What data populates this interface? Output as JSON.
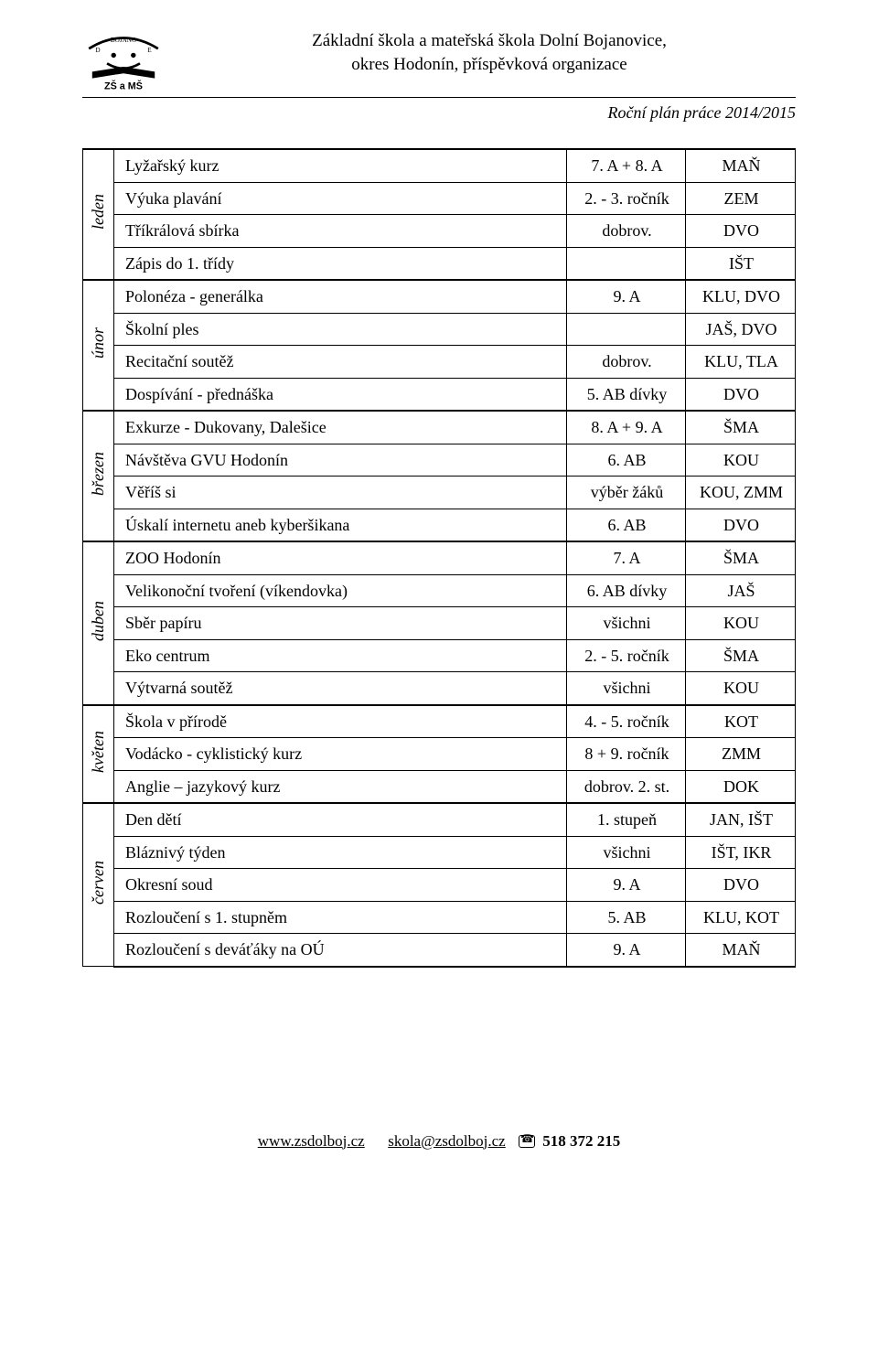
{
  "header": {
    "line1": "Základní škola a mateřská škola Dolní Bojanovice,",
    "line2": "okres Hodonín, příspěvková organizace"
  },
  "subtitle": "Roční plán práce 2014/2015",
  "months": [
    {
      "name": "leden",
      "rows": [
        {
          "activity": "Lyžařský kurz",
          "detail": "7. A + 8. A",
          "code": "MAŇ"
        },
        {
          "activity": "Výuka plavání",
          "detail": "2. - 3. ročník",
          "code": "ZEM"
        },
        {
          "activity": "Tříkrálová sbírka",
          "detail": "dobrov.",
          "code": "DVO"
        },
        {
          "activity": "Zápis do 1. třídy",
          "detail": "",
          "code": "IŠT"
        }
      ]
    },
    {
      "name": "únor",
      "rows": [
        {
          "activity": "Polonéza - generálka",
          "detail": "9. A",
          "code": "KLU, DVO"
        },
        {
          "activity": "Školní ples",
          "detail": "",
          "code": "JAŠ, DVO"
        },
        {
          "activity": "Recitační soutěž",
          "detail": "dobrov.",
          "code": "KLU, TLA"
        },
        {
          "activity": "Dospívání - přednáška",
          "detail": "5. AB dívky",
          "code": "DVO"
        }
      ]
    },
    {
      "name": "březen",
      "rows": [
        {
          "activity": "Exkurze - Dukovany, Dalešice",
          "detail": "8. A + 9. A",
          "code": "ŠMA"
        },
        {
          "activity": "Návštěva GVU Hodonín",
          "detail": "6. AB",
          "code": "KOU"
        },
        {
          "activity": "Věříš si",
          "detail": "výběr žáků",
          "code": "KOU, ZMM"
        },
        {
          "activity": "Úskalí internetu aneb kyberšikana",
          "detail": "6. AB",
          "code": "DVO"
        }
      ]
    },
    {
      "name": "duben",
      "rows": [
        {
          "activity": "ZOO Hodonín",
          "detail": "7. A",
          "code": "ŠMA"
        },
        {
          "activity": "Velikonoční tvoření (víkendovka)",
          "detail": "6. AB dívky",
          "code": "JAŠ"
        },
        {
          "activity": "Sběr papíru",
          "detail": "všichni",
          "code": "KOU"
        },
        {
          "activity": "Eko centrum",
          "detail": "2. - 5. ročník",
          "code": "ŠMA"
        },
        {
          "activity": "Výtvarná soutěž",
          "detail": "všichni",
          "code": "KOU"
        }
      ]
    },
    {
      "name": "květen",
      "rows": [
        {
          "activity": "Škola v přírodě",
          "detail": "4. - 5. ročník",
          "code": "KOT"
        },
        {
          "activity": "Vodácko - cyklistický kurz",
          "detail": "8 + 9. ročník",
          "code": "ZMM"
        },
        {
          "activity": "Anglie – jazykový kurz",
          "detail": "dobrov. 2. st.",
          "code": "DOK"
        }
      ]
    },
    {
      "name": "červen",
      "rows": [
        {
          "activity": "Den dětí",
          "detail": "1. stupeň",
          "code": "JAN, IŠT"
        },
        {
          "activity": "Bláznivý týden",
          "detail": "všichni",
          "code": "IŠT, IKR"
        },
        {
          "activity": "Okresní soud",
          "detail": "9. A",
          "code": "DVO"
        },
        {
          "activity": "Rozloučení s 1. stupněm",
          "detail": "5. AB",
          "code": "KLU, KOT"
        },
        {
          "activity": "Rozloučení s deváťáky na OÚ",
          "detail": "9. A",
          "code": "MAŇ"
        }
      ]
    }
  ],
  "footer": {
    "web": "www.zsdolboj.cz",
    "email": "skola@zsdolboj.cz",
    "phone": "518  372  215"
  }
}
